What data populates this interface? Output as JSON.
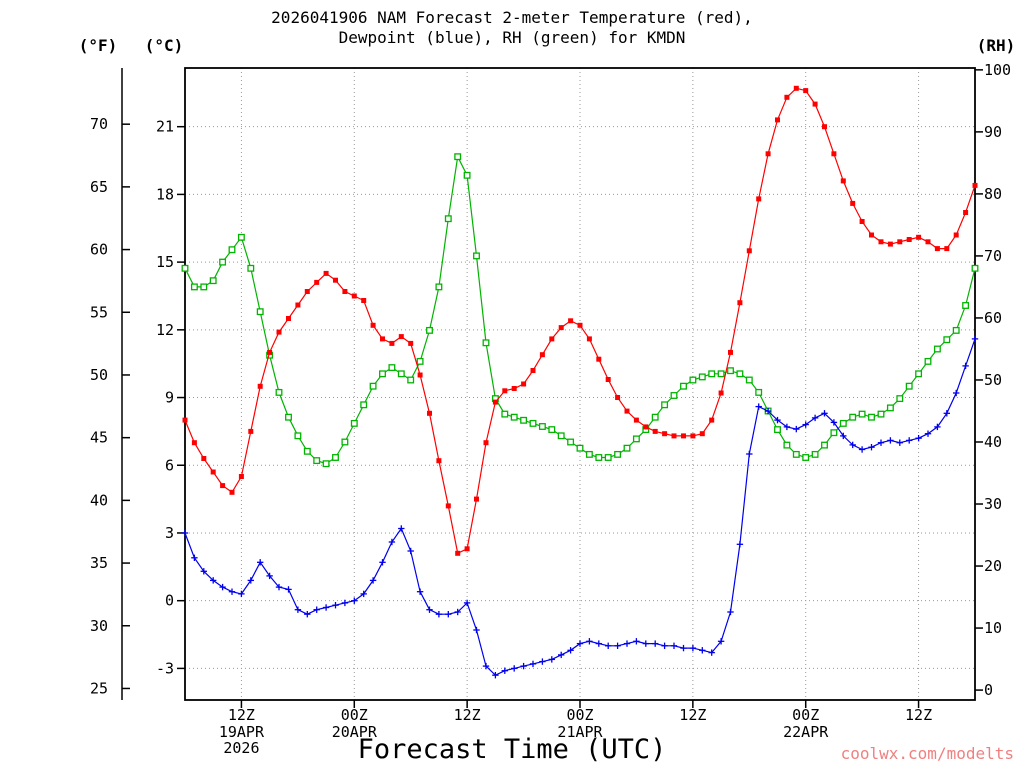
{
  "header": {
    "title_line1": "2026041906 NAM Forecast 2-meter Temperature (red),",
    "title_line2": "Dewpoint (blue), RH (green) for KMDN"
  },
  "axis_headers": {
    "fahrenheit": "(°F)",
    "celsius": "(°C)",
    "rh": "(RH)"
  },
  "watermark": {
    "text": "coolwx.com/modelts",
    "color": "#f08080"
  },
  "chart_data": {
    "type": "line",
    "title": "2026041906 NAM Forecast 2-meter Temperature (red), Dewpoint (blue), RH (green) for KMDN",
    "xlabel": "Forecast Time (UTC)",
    "station": "KMDN",
    "model_run": "2026041906 NAM",
    "grid": true,
    "x_start_hour": 6,
    "x_step_hours": 1,
    "x_range_hours": [
      6,
      90
    ],
    "c_axis_range": [
      -4.4,
      23.6
    ],
    "rh_axis_range": [
      -1.6,
      100.3
    ],
    "f_ticks": [
      25,
      30,
      35,
      40,
      45,
      50,
      55,
      60,
      65,
      70
    ],
    "c_ticks": [
      -3,
      0,
      3,
      6,
      9,
      12,
      15,
      18,
      21
    ],
    "rh_ticks": [
      0,
      10,
      20,
      30,
      40,
      50,
      60,
      70,
      80,
      90,
      100
    ],
    "x_ticks": [
      {
        "hour": 12,
        "label": "12Z"
      },
      {
        "hour": 24,
        "label": "00Z"
      },
      {
        "hour": 36,
        "label": "12Z"
      },
      {
        "hour": 48,
        "label": "00Z"
      },
      {
        "hour": 60,
        "label": "12Z"
      },
      {
        "hour": 72,
        "label": "00Z"
      },
      {
        "hour": 84,
        "label": "12Z"
      }
    ],
    "date_labels": [
      {
        "hour": 12,
        "label": "19APR",
        "sub": "2026"
      },
      {
        "hour": 24,
        "label": "20APR"
      },
      {
        "hour": 48,
        "label": "21APR"
      },
      {
        "hour": 72,
        "label": "22APR"
      }
    ],
    "series": [
      {
        "key": "temperature",
        "name": "2-meter Temperature",
        "axis": "celsius",
        "unit": "°C",
        "color": "#ff0000",
        "marker": "filled-square",
        "values": [
          8,
          7,
          6.3,
          5.7,
          5.1,
          4.8,
          5.5,
          7.5,
          9.5,
          11,
          11.9,
          12.5,
          13.1,
          13.7,
          14.1,
          14.5,
          14.2,
          13.7,
          13.5,
          13.3,
          12.2,
          11.6,
          11.4,
          11.7,
          11.4,
          10,
          8.3,
          6.2,
          4.2,
          2.1,
          2.3,
          4.5,
          7,
          8.8,
          9.3,
          9.4,
          9.6,
          10.2,
          10.9,
          11.6,
          12.1,
          12.4,
          12.2,
          11.6,
          10.7,
          9.8,
          9,
          8.4,
          8,
          7.7,
          7.5,
          7.4,
          7.3,
          7.3,
          7.3,
          7.4,
          8,
          9.2,
          11,
          13.2,
          15.5,
          17.8,
          19.8,
          21.3,
          22.3,
          22.7,
          22.6,
          22,
          21,
          19.8,
          18.6,
          17.6,
          16.8,
          16.2,
          15.9,
          15.8,
          15.9,
          16,
          16.1,
          15.9,
          15.6,
          15.6,
          16.2,
          17.2,
          18.4
        ]
      },
      {
        "key": "dewpoint",
        "name": "Dewpoint",
        "axis": "celsius",
        "unit": "°C",
        "color": "#0000ee",
        "marker": "plus",
        "values": [
          3,
          1.9,
          1.3,
          0.9,
          0.6,
          0.4,
          0.3,
          0.9,
          1.7,
          1.1,
          0.6,
          0.5,
          -0.4,
          -0.6,
          -0.4,
          -0.3,
          -0.2,
          -0.1,
          0,
          0.3,
          0.9,
          1.7,
          2.6,
          3.2,
          2.2,
          0.4,
          -0.4,
          -0.6,
          -0.6,
          -0.5,
          -0.1,
          -1.3,
          -2.9,
          -3.3,
          -3.1,
          -3,
          -2.9,
          -2.8,
          -2.7,
          -2.6,
          -2.4,
          -2.2,
          -1.9,
          -1.8,
          -1.9,
          -2,
          -2,
          -1.9,
          -1.8,
          -1.9,
          -1.9,
          -2,
          -2,
          -2.1,
          -2.1,
          -2.2,
          -2.3,
          -1.8,
          -0.5,
          2.5,
          6.5,
          8.6,
          8.4,
          8,
          7.7,
          7.6,
          7.8,
          8.1,
          8.3,
          7.9,
          7.3,
          6.9,
          6.7,
          6.8,
          7,
          7.1,
          7,
          7.1,
          7.2,
          7.4,
          7.7,
          8.3,
          9.2,
          10.4,
          11.6
        ]
      },
      {
        "key": "rh",
        "name": "Relative Humidity",
        "axis": "rh",
        "unit": "%",
        "color": "#00b400",
        "marker": "open-square",
        "values": [
          68,
          65,
          65,
          66,
          69,
          71,
          73,
          68,
          61,
          54,
          48,
          44,
          41,
          38.5,
          37,
          36.5,
          37.5,
          40,
          43,
          46,
          49,
          51,
          52,
          51,
          50,
          53,
          58,
          65,
          76,
          86,
          83,
          70,
          56,
          47,
          44.5,
          44,
          43.5,
          43,
          42.5,
          42,
          41,
          40,
          39,
          38,
          37.5,
          37.5,
          38,
          39,
          40.5,
          42,
          44,
          46,
          47.5,
          49,
          50,
          50.5,
          51,
          51,
          51.5,
          51,
          50,
          48,
          45,
          42,
          39.5,
          38,
          37.5,
          38,
          39.5,
          41.5,
          43,
          44,
          44.5,
          44,
          44.5,
          45.5,
          47,
          49,
          51,
          53,
          55,
          56.5,
          58,
          62,
          68
        ]
      }
    ]
  }
}
